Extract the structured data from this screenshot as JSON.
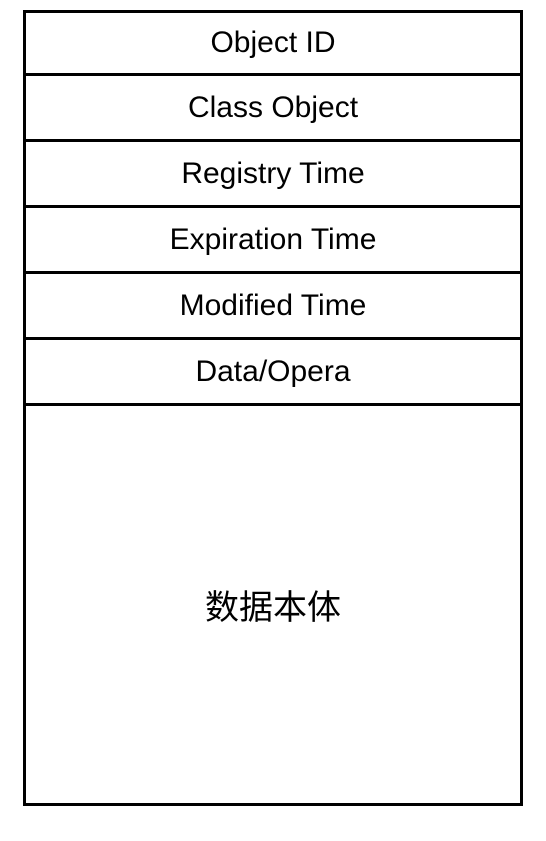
{
  "diagram": {
    "type": "table",
    "background_color": "#ffffff",
    "border_color": "#000000",
    "border_width": 3,
    "text_color": "#000000",
    "header_font_size": 30,
    "body_font_size": 34,
    "container_width": 500,
    "header_row_height": 66,
    "body_row_height": 400,
    "header_rows": [
      {
        "label": "Object ID"
      },
      {
        "label": "Class Object"
      },
      {
        "label": "Registry Time"
      },
      {
        "label": "Expiration Time"
      },
      {
        "label": "Modified Time"
      },
      {
        "label": "Data/Opera"
      }
    ],
    "body_row": {
      "label": "数据本体"
    }
  }
}
